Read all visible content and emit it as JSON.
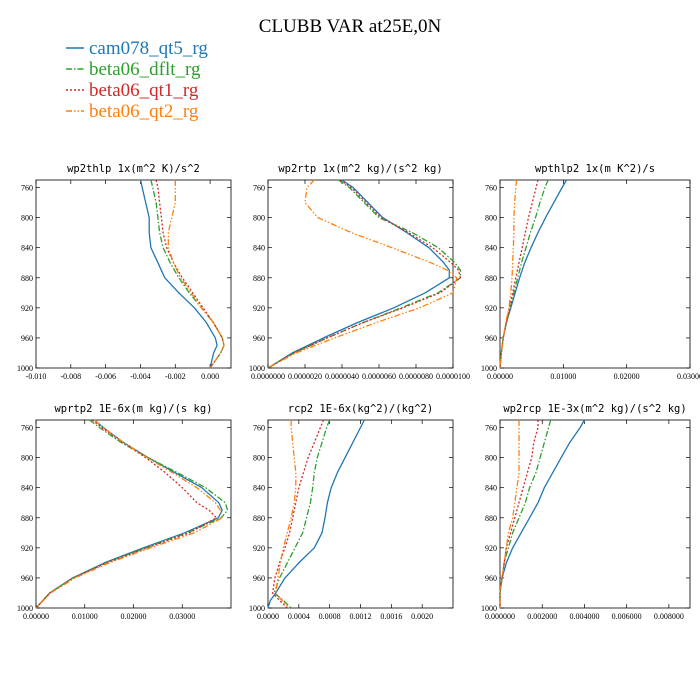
{
  "figure": {
    "title": "CLUBB VAR at25E,0N"
  },
  "legend": [
    {
      "label": "cam078_qt5_rg",
      "color": "#1f77b4",
      "dash": "solid"
    },
    {
      "label": "beta06_dflt_rg",
      "color": "#2ca02c",
      "dash": "dashdot"
    },
    {
      "label": "beta06_qt1_rg",
      "color": "#d62728",
      "dash": "dot"
    },
    {
      "label": "beta06_qt2_rg",
      "color": "#ff7f0e",
      "dash": "dashdotdot"
    }
  ],
  "chart_data": [
    {
      "type": "line",
      "title": "wp2thlp  1x(m^2 K)/s^2",
      "xlim": [
        -0.01,
        0.0012
      ],
      "ylim": [
        1000,
        750
      ],
      "y_inverted": true,
      "xticks": [
        -0.01,
        -0.008,
        -0.006,
        -0.004,
        -0.002,
        0.0
      ],
      "xtick_labels": [
        "-0.010",
        "-0.008",
        "-0.006",
        "-0.004",
        "-0.002",
        "0.000"
      ],
      "yticks": [
        760,
        800,
        840,
        880,
        920,
        960,
        1000
      ],
      "ytick_labels": [
        "760",
        "800",
        "840",
        "880",
        "920",
        "960",
        "1000"
      ],
      "y": [
        750,
        760,
        780,
        800,
        820,
        840,
        860,
        880,
        900,
        920,
        940,
        960,
        970,
        980,
        1000
      ],
      "series": [
        {
          "name": "cam078_qt5_rg",
          "x": [
            -0.004,
            -0.0039,
            -0.0037,
            -0.0035,
            -0.0035,
            -0.0034,
            -0.003,
            -0.0026,
            -0.0018,
            -0.0009,
            -0.0002,
            0.0003,
            0.0004,
            0.0002,
            0.0
          ]
        },
        {
          "name": "beta06_dflt_rg",
          "x": [
            -0.0034,
            -0.0033,
            -0.0031,
            -0.003,
            -0.0029,
            -0.0027,
            -0.0023,
            -0.0018,
            -0.0012,
            -0.0005,
            0.0002,
            0.0007,
            0.0008,
            0.0006,
            0.0
          ]
        },
        {
          "name": "beta06_qt1_rg",
          "x": [
            -0.0031,
            -0.003,
            -0.0029,
            -0.0028,
            -0.0027,
            -0.0025,
            -0.0021,
            -0.0016,
            -0.001,
            -0.0004,
            0.0002,
            0.0007,
            0.0008,
            0.0006,
            0.0
          ]
        },
        {
          "name": "beta06_qt2_rg",
          "x": [
            -0.002,
            -0.002,
            -0.002,
            -0.0022,
            -0.0024,
            -0.0024,
            -0.0021,
            -0.0017,
            -0.0011,
            -0.0005,
            0.0002,
            0.0007,
            0.0008,
            0.0006,
            0.0
          ]
        }
      ]
    },
    {
      "type": "line",
      "title": "wp2rtp  1x(m^2 kg)/(s^2 kg)",
      "xlim": [
        0.0,
        1e-05
      ],
      "ylim": [
        1000,
        750
      ],
      "y_inverted": true,
      "xticks": [
        0.0,
        2e-06,
        4e-06,
        6e-06,
        8e-06,
        1e-05
      ],
      "xtick_labels": [
        "0.0000000",
        "0.0000020",
        "0.0000040",
        "0.0000060",
        "0.0000080",
        "0.0000100"
      ],
      "yticks": [
        760,
        800,
        840,
        880,
        920,
        960,
        1000
      ],
      "ytick_labels": [
        "760",
        "800",
        "840",
        "880",
        "920",
        "960",
        "1000"
      ],
      "y": [
        750,
        760,
        780,
        800,
        820,
        840,
        860,
        870,
        880,
        900,
        920,
        940,
        960,
        980,
        1000
      ],
      "series": [
        {
          "name": "cam078_qt5_rg",
          "x": [
            4e-06,
            4.6e-06,
            5.4e-06,
            6.2e-06,
            7.5e-06,
            8.7e-06,
            9.5e-06,
            9.8e-06,
            9.8e-06,
            8.5e-06,
            6.8e-06,
            4.8e-06,
            3e-06,
            1.3e-06,
            0.0
          ]
        },
        {
          "name": "beta06_dflt_rg",
          "x": [
            3.8e-06,
            4.4e-06,
            5.2e-06,
            6e-06,
            7.8e-06,
            9.2e-06,
            1.01e-05,
            1.04e-05,
            1.04e-05,
            9.2e-06,
            7.2e-06,
            5.1e-06,
            3.2e-06,
            1.4e-06,
            0.0
          ]
        },
        {
          "name": "beta06_qt1_rg",
          "x": [
            3.9e-06,
            4.5e-06,
            5.3e-06,
            6.1e-06,
            7.6e-06,
            8.9e-06,
            9.9e-06,
            1.03e-05,
            1.04e-05,
            9.3e-06,
            7.3e-06,
            5.1e-06,
            3.2e-06,
            1.4e-06,
            0.0
          ]
        },
        {
          "name": "beta06_qt2_rg",
          "x": [
            2.5e-06,
            2.1e-06,
            2e-06,
            2.7e-06,
            4.5e-06,
            6.7e-06,
            8.8e-06,
            9.7e-06,
            1.02e-05,
            1e-05,
            8.2e-06,
            5.8e-06,
            3.6e-06,
            1.5e-06,
            0.0
          ]
        }
      ]
    },
    {
      "type": "line",
      "title": "wpthlp2  1x(m K^2)/s",
      "xlim": [
        0.0,
        0.03
      ],
      "ylim": [
        1000,
        750
      ],
      "y_inverted": true,
      "xticks": [
        0.0,
        0.01,
        0.02,
        0.03
      ],
      "xtick_labels": [
        "0.00000",
        "0.01000",
        "0.02000",
        "0.03000"
      ],
      "yticks": [
        760,
        800,
        840,
        880,
        920,
        960,
        1000
      ],
      "ytick_labels": [
        "760",
        "800",
        "840",
        "880",
        "920",
        "960",
        "1000"
      ],
      "y": [
        750,
        760,
        780,
        800,
        820,
        840,
        860,
        880,
        900,
        920,
        940,
        960,
        980,
        1000
      ],
      "series": [
        {
          "name": "cam078_qt5_rg",
          "x": [
            0.0105,
            0.0098,
            0.0085,
            0.0072,
            0.006,
            0.0049,
            0.0039,
            0.0031,
            0.0024,
            0.0017,
            0.001,
            0.0005,
            0.0002,
            0.0
          ]
        },
        {
          "name": "beta06_dflt_rg",
          "x": [
            0.0076,
            0.0071,
            0.0063,
            0.0056,
            0.0048,
            0.0041,
            0.0034,
            0.0028,
            0.0022,
            0.0016,
            0.001,
            0.0005,
            0.0002,
            0.0
          ]
        },
        {
          "name": "beta06_qt1_rg",
          "x": [
            0.006,
            0.0057,
            0.0051,
            0.0045,
            0.004,
            0.0035,
            0.003,
            0.0025,
            0.002,
            0.0015,
            0.001,
            0.0005,
            0.0002,
            0.0
          ]
        },
        {
          "name": "beta06_qt2_rg",
          "x": [
            0.0026,
            0.0025,
            0.0023,
            0.0022,
            0.0022,
            0.0021,
            0.002,
            0.0019,
            0.0017,
            0.0014,
            0.0009,
            0.0005,
            0.0002,
            0.0
          ]
        }
      ]
    },
    {
      "type": "line",
      "title": "wprtp2  1E-6x(m kg)/(s kg)",
      "xlim": [
        0.0,
        0.04
      ],
      "ylim": [
        1000,
        750
      ],
      "y_inverted": true,
      "xticks": [
        0.0,
        0.01,
        0.02,
        0.03
      ],
      "xtick_labels": [
        "0.00000",
        "0.01000",
        "0.02000",
        "0.03000"
      ],
      "yticks": [
        760,
        800,
        840,
        880,
        920,
        960,
        1000
      ],
      "ytick_labels": [
        "760",
        "800",
        "840",
        "880",
        "920",
        "960",
        "1000"
      ],
      "y": [
        750,
        760,
        780,
        800,
        820,
        840,
        860,
        870,
        880,
        900,
        920,
        940,
        960,
        980,
        1000
      ],
      "series": [
        {
          "name": "cam078_qt5_rg",
          "x": [
            0.012,
            0.0138,
            0.018,
            0.023,
            0.0285,
            0.034,
            0.0375,
            0.0382,
            0.0374,
            0.0305,
            0.022,
            0.014,
            0.0075,
            0.0028,
            0.0
          ]
        },
        {
          "name": "beta06_dflt_rg",
          "x": [
            0.011,
            0.013,
            0.0175,
            0.023,
            0.029,
            0.0348,
            0.0388,
            0.0393,
            0.038,
            0.031,
            0.0225,
            0.0143,
            0.0076,
            0.0028,
            0.0
          ]
        },
        {
          "name": "beta06_qt1_rg",
          "x": [
            0.0115,
            0.0135,
            0.0178,
            0.0225,
            0.0265,
            0.03,
            0.033,
            0.0355,
            0.037,
            0.0315,
            0.0228,
            0.0145,
            0.0077,
            0.0029,
            0.0
          ]
        },
        {
          "name": "beta06_qt2_rg",
          "x": [
            0.012,
            0.0138,
            0.018,
            0.0228,
            0.028,
            0.033,
            0.0368,
            0.0378,
            0.0382,
            0.0325,
            0.0235,
            0.015,
            0.008,
            0.003,
            0.0
          ]
        }
      ]
    },
    {
      "type": "line",
      "title": "rcp2  1E-6x(kg^2)/(kg^2)",
      "xlim": [
        0.0,
        0.0024
      ],
      "ylim": [
        1000,
        750
      ],
      "y_inverted": true,
      "xticks": [
        0.0,
        0.0004,
        0.0008,
        0.0012,
        0.0016,
        0.002
      ],
      "xtick_labels": [
        "0.0000",
        "0.0004",
        "0.0008",
        "0.0012",
        "0.0016",
        "0.0020"
      ],
      "yticks": [
        760,
        800,
        840,
        880,
        920,
        960,
        1000
      ],
      "ytick_labels": [
        "760",
        "800",
        "840",
        "880",
        "920",
        "960",
        "1000"
      ],
      "y": [
        750,
        760,
        780,
        800,
        820,
        840,
        860,
        880,
        900,
        920,
        940,
        960,
        980,
        990,
        1000
      ],
      "series": [
        {
          "name": "cam078_qt5_rg",
          "x": [
            0.00125,
            0.0012,
            0.0011,
            0.001,
            0.0009,
            0.00082,
            0.00077,
            0.00074,
            0.0007,
            0.0006,
            0.0004,
            0.00022,
            0.0001,
            3e-05,
            0.0
          ]
        },
        {
          "name": "beta06_dflt_rg",
          "x": [
            0.0008,
            0.00076,
            0.0007,
            0.00064,
            0.0006,
            0.00058,
            0.00055,
            0.0005,
            0.00045,
            0.00035,
            0.00025,
            0.00015,
            8e-05,
            0.0002,
            0.0003
          ]
        },
        {
          "name": "beta06_qt1_rg",
          "x": [
            0.00072,
            0.00068,
            0.0006,
            0.00052,
            0.00046,
            0.0004,
            0.00036,
            0.00032,
            0.00028,
            0.00022,
            0.00015,
            9e-05,
            6e-05,
            0.00015,
            0.00025
          ]
        },
        {
          "name": "beta06_qt2_rg",
          "x": [
            0.0003,
            0.0003,
            0.00032,
            0.00034,
            0.00036,
            0.00036,
            0.00034,
            0.0003,
            0.00025,
            0.0002,
            0.00016,
            0.00013,
            0.0001,
            0.00018,
            0.00028
          ]
        }
      ]
    },
    {
      "type": "line",
      "title": "wp2rcp  1E-3x(m^2 kg)/(s^2 kg)",
      "xlim": [
        0.0,
        0.009
      ],
      "ylim": [
        1000,
        750
      ],
      "y_inverted": true,
      "xticks": [
        0.0,
        0.002,
        0.004,
        0.006,
        0.008
      ],
      "xtick_labels": [
        "0.000000",
        "0.002000",
        "0.004000",
        "0.006000",
        "0.008000"
      ],
      "yticks": [
        760,
        800,
        840,
        880,
        920,
        960,
        1000
      ],
      "ytick_labels": [
        "760",
        "800",
        "840",
        "880",
        "920",
        "960",
        "1000"
      ],
      "y": [
        750,
        760,
        780,
        800,
        820,
        840,
        860,
        880,
        900,
        920,
        940,
        960,
        980,
        1000
      ],
      "series": [
        {
          "name": "cam078_qt5_rg",
          "x": [
            0.004,
            0.0038,
            0.0033,
            0.0029,
            0.0025,
            0.0021,
            0.0018,
            0.0014,
            0.001,
            0.0006,
            0.0003,
            0.0001,
            0.0,
            0.0
          ]
        },
        {
          "name": "beta06_dflt_rg",
          "x": [
            0.0024,
            0.0023,
            0.0021,
            0.0019,
            0.0017,
            0.0014,
            0.0012,
            0.0009,
            0.0006,
            0.0004,
            0.0002,
            0.0001,
            0.0,
            0.0
          ]
        },
        {
          "name": "beta06_qt1_rg",
          "x": [
            0.0018,
            0.0018,
            0.0016,
            0.0015,
            0.0013,
            0.0011,
            0.0009,
            0.0007,
            0.0005,
            0.0003,
            0.0002,
            0.0001,
            0.0,
            0.0
          ]
        },
        {
          "name": "beta06_qt2_rg",
          "x": [
            0.0009,
            0.0009,
            0.0009,
            0.0009,
            0.0009,
            0.0008,
            0.0007,
            0.0006,
            0.0004,
            0.0003,
            0.0002,
            0.0001,
            0.0,
            0.0
          ]
        }
      ]
    }
  ]
}
